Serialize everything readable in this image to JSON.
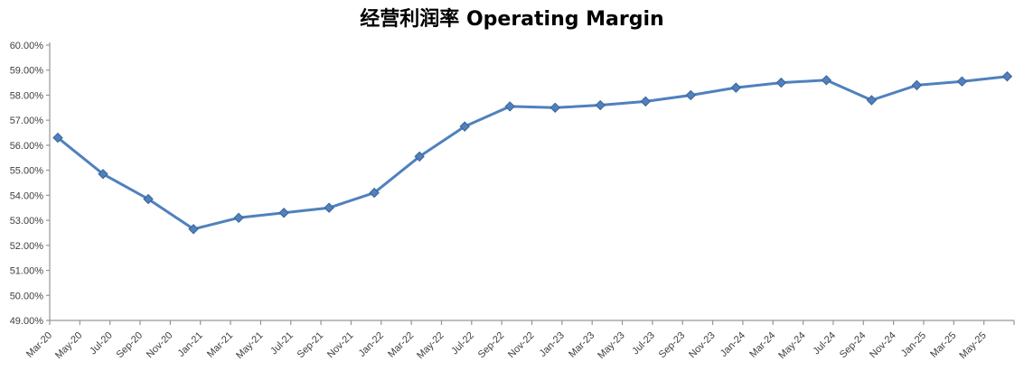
{
  "chart_data": {
    "type": "line",
    "title": "经营利润率 Operating Margin",
    "xlabel": "",
    "ylabel": "",
    "ylim": [
      49,
      60
    ],
    "y_tick_step": 1,
    "grid": false,
    "legend": "none",
    "marker_shape": "diamond",
    "y_tick_labels": [
      "60.00%",
      "59.00%",
      "58.00%",
      "57.00%",
      "56.00%",
      "55.00%",
      "54.00%",
      "53.00%",
      "52.00%",
      "51.00%",
      "50.00%",
      "49.00%"
    ],
    "x_tick_labels": [
      "Mar-20",
      "May-20",
      "Jul-20",
      "Sep-20",
      "Nov-20",
      "Jan-21",
      "Mar-21",
      "May-21",
      "Jul-21",
      "Sep-21",
      "Nov-21",
      "Jan-22",
      "Mar-22",
      "May-22",
      "Jul-22",
      "Sep-22",
      "Nov-22",
      "Jan-23",
      "Mar-23",
      "May-23",
      "Jul-23",
      "Sep-23",
      "Nov-23",
      "Jan-24",
      "Mar-24",
      "May-24",
      "Jul-24",
      "Sep-24",
      "Nov-24",
      "Jan-25",
      "Mar-25",
      "May-25"
    ],
    "series": [
      {
        "name": "Operating Margin",
        "x": [
          "Mar-20",
          "Jun-20",
          "Sep-20",
          "Dec-20",
          "Mar-21",
          "Jun-21",
          "Sep-21",
          "Dec-21",
          "Mar-22",
          "Jun-22",
          "Sep-22",
          "Dec-22",
          "Mar-23",
          "Jun-23",
          "Sep-23",
          "Dec-23",
          "Mar-24",
          "Jun-24",
          "Sep-24",
          "Dec-24",
          "Mar-25",
          "Jun-25"
        ],
        "values": [
          56.3,
          54.85,
          53.85,
          52.65,
          53.1,
          53.3,
          53.5,
          54.1,
          55.55,
          56.75,
          57.55,
          57.5,
          57.6,
          57.75,
          58.0,
          58.3,
          58.5,
          58.6,
          57.8,
          58.4,
          58.55,
          58.75
        ]
      }
    ],
    "colors": {
      "line": "#4F81BD",
      "marker_fill": "#4F81BD",
      "marker_border": "#3A6296",
      "axis": "#969696",
      "tick_label": "#404040",
      "title": "#000000"
    }
  }
}
